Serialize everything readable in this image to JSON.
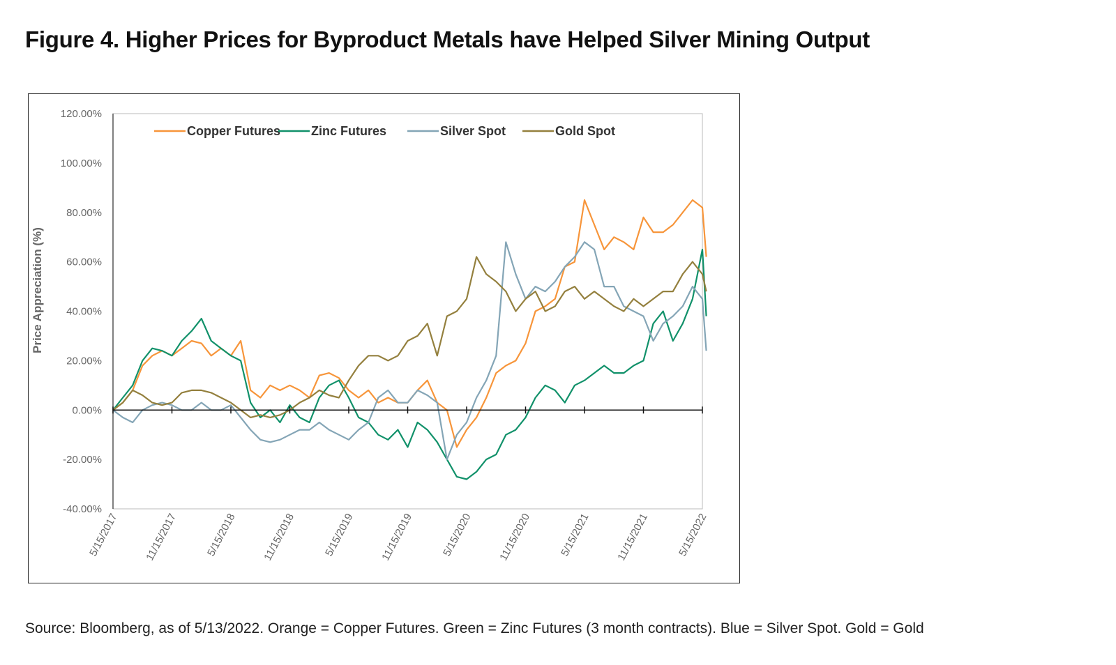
{
  "title": "Figure 4. Higher Prices for Byproduct Metals have Helped Silver Mining Output",
  "source": "Source: Bloomberg, as of 5/13/2022. Orange = Copper Futures. Green = Zinc Futures (3 month contracts). Blue = Silver Spot. Gold = Gold",
  "chart_data": {
    "type": "line",
    "title": "",
    "xlabel": "",
    "ylabel": "Price Appreciation (%)",
    "ylim": [
      -40,
      120
    ],
    "yticks": [
      "120.00%",
      "100.00%",
      "80.00%",
      "60.00%",
      "40.00%",
      "20.00%",
      "0.00%",
      "-20.00%",
      "-40.00%"
    ],
    "ytick_values": [
      120,
      100,
      80,
      60,
      40,
      20,
      0,
      -20,
      -40
    ],
    "xticks": [
      "5/15/2017",
      "11/15/2017",
      "5/15/2018",
      "11/15/2018",
      "5/15/2019",
      "11/15/2019",
      "5/15/2020",
      "11/15/2020",
      "5/15/2021",
      "11/15/2021",
      "5/15/2022"
    ],
    "xtick_months": [
      0,
      6,
      12,
      18,
      24,
      30,
      36,
      42,
      48,
      54,
      60
    ],
    "x_unit": "months since 5/15/2017",
    "x": [
      0,
      1,
      2,
      3,
      4,
      5,
      6,
      7,
      8,
      9,
      10,
      11,
      12,
      13,
      14,
      15,
      16,
      17,
      18,
      19,
      20,
      21,
      22,
      23,
      24,
      25,
      26,
      27,
      28,
      29,
      30,
      31,
      32,
      33,
      34,
      35,
      36,
      37,
      38,
      39,
      40,
      41,
      42,
      43,
      44,
      45,
      46,
      47,
      48,
      49,
      50,
      51,
      52,
      53,
      54,
      55,
      56,
      57,
      58,
      59,
      60,
      60.4
    ],
    "legend_position": "top",
    "grid": false,
    "series": [
      {
        "name": "Copper Futures",
        "color": "#f7953a",
        "values": [
          0,
          3,
          8,
          18,
          22,
          24,
          22,
          25,
          28,
          27,
          22,
          25,
          22,
          28,
          8,
          5,
          10,
          8,
          10,
          8,
          5,
          14,
          15,
          13,
          8,
          5,
          8,
          3,
          5,
          3,
          3,
          8,
          12,
          3,
          0,
          -15,
          -8,
          -3,
          5,
          15,
          18,
          20,
          27,
          40,
          42,
          45,
          58,
          60,
          85,
          75,
          65,
          70,
          68,
          65,
          78,
          72,
          72,
          75,
          80,
          85,
          82,
          62
        ]
      },
      {
        "name": "Zinc Futures",
        "color": "#11916a",
        "values": [
          0,
          5,
          10,
          20,
          25,
          24,
          22,
          28,
          32,
          37,
          28,
          25,
          22,
          20,
          3,
          -3,
          0,
          -5,
          2,
          -3,
          -5,
          5,
          10,
          12,
          5,
          -3,
          -5,
          -10,
          -12,
          -8,
          -15,
          -5,
          -8,
          -13,
          -20,
          -27,
          -28,
          -25,
          -20,
          -18,
          -10,
          -8,
          -3,
          5,
          10,
          8,
          3,
          10,
          12,
          15,
          18,
          15,
          15,
          18,
          20,
          35,
          40,
          28,
          35,
          45,
          65,
          38
        ]
      },
      {
        "name": "Silver Spot",
        "color": "#84a5b6",
        "values": [
          0,
          -3,
          -5,
          0,
          2,
          3,
          2,
          0,
          0,
          3,
          0,
          0,
          2,
          -3,
          -8,
          -12,
          -13,
          -12,
          -10,
          -8,
          -8,
          -5,
          -8,
          -10,
          -12,
          -8,
          -5,
          5,
          8,
          3,
          3,
          8,
          6,
          3,
          -20,
          -10,
          -5,
          5,
          12,
          22,
          68,
          55,
          45,
          50,
          48,
          52,
          58,
          62,
          68,
          65,
          50,
          50,
          42,
          40,
          38,
          28,
          35,
          38,
          42,
          50,
          45,
          24
        ]
      },
      {
        "name": "Gold Spot",
        "color": "#94803e",
        "values": [
          0,
          3,
          8,
          6,
          3,
          2,
          3,
          7,
          8,
          8,
          7,
          5,
          3,
          0,
          -3,
          -2,
          -3,
          -2,
          0,
          3,
          5,
          8,
          6,
          5,
          12,
          18,
          22,
          22,
          20,
          22,
          28,
          30,
          35,
          22,
          38,
          40,
          45,
          62,
          55,
          52,
          48,
          40,
          45,
          48,
          40,
          42,
          48,
          50,
          45,
          48,
          45,
          42,
          40,
          45,
          42,
          45,
          48,
          48,
          55,
          60,
          55,
          48
        ]
      }
    ]
  }
}
